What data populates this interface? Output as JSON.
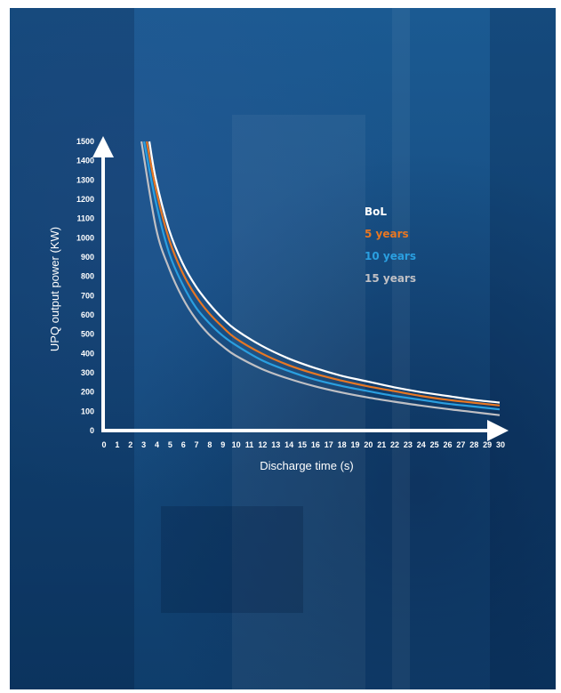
{
  "chart_data": {
    "type": "line",
    "title": "",
    "xlabel": "Discharge time (s)",
    "ylabel": "UPQ output power (KW)",
    "xlim": [
      0,
      30
    ],
    "ylim": [
      0,
      1500
    ],
    "x_ticks": [
      0,
      1,
      2,
      3,
      4,
      5,
      6,
      7,
      8,
      9,
      10,
      11,
      12,
      13,
      14,
      15,
      16,
      17,
      18,
      19,
      20,
      21,
      22,
      23,
      24,
      25,
      26,
      27,
      28,
      29,
      30
    ],
    "y_ticks": [
      0,
      100,
      200,
      300,
      400,
      500,
      600,
      700,
      800,
      900,
      1000,
      1100,
      1200,
      1300,
      1400,
      1500
    ],
    "grid": false,
    "legend_position": "top-right",
    "series": [
      {
        "name": "BoL",
        "color": "#ffffff",
        "x": [
          3.5,
          4,
          5,
          6,
          7,
          8,
          9,
          10,
          12,
          14,
          16,
          18,
          20,
          22,
          24,
          26,
          28,
          30
        ],
        "y": [
          1500,
          1300,
          1040,
          870,
          750,
          660,
          585,
          525,
          440,
          375,
          325,
          285,
          255,
          225,
          200,
          180,
          160,
          145
        ]
      },
      {
        "name": "5 years",
        "color": "#e87722",
        "x": [
          3.3,
          4,
          5,
          6,
          7,
          8,
          9,
          10,
          12,
          14,
          16,
          18,
          20,
          22,
          24,
          26,
          28,
          30
        ],
        "y": [
          1500,
          1250,
          990,
          820,
          700,
          610,
          540,
          480,
          400,
          340,
          295,
          260,
          230,
          205,
          180,
          160,
          145,
          130
        ]
      },
      {
        "name": "10 years",
        "color": "#2a9fe0",
        "x": [
          3.1,
          4,
          5,
          6,
          7,
          8,
          9,
          10,
          12,
          14,
          16,
          18,
          20,
          22,
          24,
          26,
          28,
          30
        ],
        "y": [
          1500,
          1180,
          920,
          760,
          640,
          560,
          495,
          445,
          365,
          310,
          265,
          232,
          205,
          180,
          160,
          140,
          125,
          110
        ]
      },
      {
        "name": "15 years",
        "color": "#c0c0c4",
        "x": [
          2.9,
          4,
          5,
          6,
          7,
          8,
          9,
          10,
          12,
          14,
          16,
          18,
          20,
          22,
          24,
          26,
          28,
          30
        ],
        "y": [
          1500,
          1050,
          840,
          690,
          580,
          500,
          440,
          390,
          320,
          270,
          230,
          198,
          172,
          150,
          130,
          112,
          96,
          80
        ]
      }
    ]
  }
}
